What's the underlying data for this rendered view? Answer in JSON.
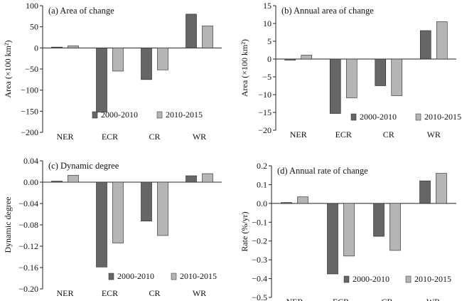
{
  "colors": {
    "s1": "#666666",
    "s2": "#b5b5b5",
    "stroke": "#222222"
  },
  "chart_data": [
    {
      "type": "bar",
      "title": "(a) Area of change",
      "ylabel": "Area (×100 km²)",
      "categories": [
        "NER",
        "ECR",
        "CR",
        "WR"
      ],
      "series": [
        {
          "name": "2000-2010",
          "values": [
            2,
            -152,
            -75,
            80
          ]
        },
        {
          "name": "2010-2015",
          "values": [
            5,
            -55,
            -52,
            52
          ]
        }
      ],
      "ylim": [
        -200,
        100
      ],
      "yticks": [
        100,
        50,
        0,
        -50,
        -100,
        -150,
        -200
      ],
      "ytick_labels": [
        "100",
        "50",
        "0",
        "−50",
        "−100",
        "−150",
        "−200"
      ],
      "legend": "bottom-center"
    },
    {
      "type": "bar",
      "title": "(b) Annual area of change",
      "ylabel": "Area (×100 km²)",
      "categories": [
        "NER",
        "ECR",
        "CR",
        "WR"
      ],
      "series": [
        {
          "name": "2000-2010",
          "values": [
            -0.2,
            -15.3,
            -7.5,
            8.0
          ]
        },
        {
          "name": "2010-2015",
          "values": [
            1.1,
            -10.9,
            -10.3,
            10.5
          ]
        }
      ],
      "ylim": [
        -20,
        15
      ],
      "yticks": [
        15,
        10,
        5,
        0,
        -5,
        -10,
        -15,
        -20
      ],
      "ytick_labels": [
        "15",
        "10",
        "5",
        "0",
        "−5",
        "−10",
        "−15",
        "−20"
      ],
      "legend": "bottom-right"
    },
    {
      "type": "bar",
      "title": "(c) Dynamic degree",
      "ylabel": "Dynamic degree",
      "categories": [
        "NER",
        "ECR",
        "CR",
        "WR"
      ],
      "series": [
        {
          "name": "2000-2010",
          "values": [
            0.002,
            -0.159,
            -0.073,
            0.012
          ]
        },
        {
          "name": "2010-2015",
          "values": [
            0.013,
            -0.114,
            -0.1,
            0.016
          ]
        }
      ],
      "ylim": [
        -0.2,
        0.04
      ],
      "yticks": [
        0.04,
        0.0,
        -0.04,
        -0.08,
        -0.12,
        -0.16,
        -0.2
      ],
      "ytick_labels": [
        "0.04",
        "0.00",
        "−0.04",
        "−0.08",
        "−0.12",
        "−0.16",
        "−0.20"
      ],
      "legend": "bottom-center"
    },
    {
      "type": "bar",
      "title": "(d) Annual rate of change",
      "ylabel": "Rate (%/yr)",
      "categories": [
        "NER",
        "ECR",
        "CR",
        "WR"
      ],
      "series": [
        {
          "name": "2000-2010",
          "values": [
            0.005,
            -0.375,
            -0.175,
            0.12
          ]
        },
        {
          "name": "2010-2015",
          "values": [
            0.035,
            -0.28,
            -0.25,
            0.16
          ]
        }
      ],
      "ylim": [
        -0.5,
        0.2
      ],
      "yticks": [
        0.2,
        0.1,
        0.0,
        -0.1,
        -0.2,
        -0.3,
        -0.4,
        -0.5
      ],
      "ytick_labels": [
        "0.2",
        "0.1",
        "0.0",
        "−0.1",
        "−0.2",
        "−0.3",
        "−0.4",
        "−0.5"
      ],
      "legend": "bottom-center"
    }
  ]
}
